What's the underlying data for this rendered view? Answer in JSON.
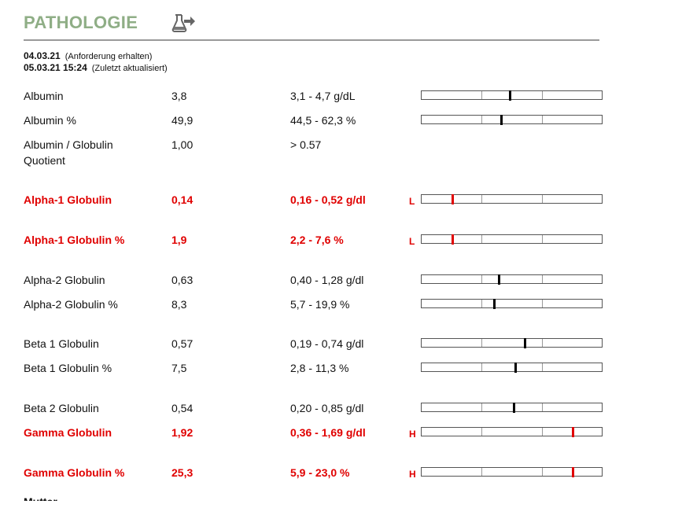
{
  "header": {
    "title": "PATHOLOGIE",
    "icon": "flask-arrow-icon"
  },
  "dates": [
    {
      "date": "04.03.21",
      "note": "(Anforderung erhalten)"
    },
    {
      "date": "05.03.21 15:24",
      "note": "(Zuletzt aktualisiert)"
    }
  ],
  "colors": {
    "title": "#8fae86",
    "abnormal": "#e00000",
    "rule": "#9a9a9a"
  },
  "results": [
    {
      "name": "Albumin",
      "value": "3,8",
      "range": "3,1 - 4,7 g/dL",
      "flag": "",
      "abnormal": false,
      "has_bar": true,
      "level": 0.49
    },
    {
      "name": "Albumin %",
      "value": "49,9",
      "range": "44,5 - 62,3 %",
      "flag": "",
      "abnormal": false,
      "has_bar": true,
      "level": 0.44
    },
    {
      "name": "Albumin / Globulin Quotient",
      "value": "1,00",
      "range": "> 0.57",
      "flag": "",
      "abnormal": false,
      "has_bar": false,
      "level": null
    },
    {
      "name": "Alpha-1 Globulin",
      "value": "0,14",
      "range": "0,16 - 0,52 g/dl",
      "flag": "L",
      "abnormal": true,
      "has_bar": true,
      "level": 0.17
    },
    {
      "name": "Alpha-1 Globulin %",
      "value": "1,9",
      "range": "2,2 - 7,6 %",
      "flag": "L",
      "abnormal": true,
      "has_bar": true,
      "level": 0.17
    },
    {
      "name": "Alpha-2 Globulin",
      "value": "0,63",
      "range": "0,40 - 1,28 g/dl",
      "flag": "",
      "abnormal": false,
      "has_bar": true,
      "level": 0.43
    },
    {
      "name": "Alpha-2 Globulin %",
      "value": "8,3",
      "range": "5,7 - 19,9 %",
      "flag": "",
      "abnormal": false,
      "has_bar": true,
      "level": 0.4
    },
    {
      "name": "Beta 1 Globulin",
      "value": "0,57",
      "range": "0,19 - 0,74 g/dl",
      "flag": "",
      "abnormal": false,
      "has_bar": true,
      "level": 0.57
    },
    {
      "name": "Beta 1 Globulin %",
      "value": "7,5",
      "range": "2,8 - 11,3 %",
      "flag": "",
      "abnormal": false,
      "has_bar": true,
      "level": 0.52
    },
    {
      "name": "Beta 2 Globulin",
      "value": "0,54",
      "range": "0,20 - 0,85 g/dl",
      "flag": "",
      "abnormal": false,
      "has_bar": true,
      "level": 0.51
    },
    {
      "name": "Gamma Globulin",
      "value": "1,92",
      "range": "0,36 - 1,69 g/dl",
      "flag": "H",
      "abnormal": true,
      "has_bar": true,
      "level": 0.84
    },
    {
      "name": "Gamma Globulin %",
      "value": "25,3",
      "range": "5,9 - 23,0 %",
      "flag": "H",
      "abnormal": true,
      "has_bar": true,
      "level": 0.84
    }
  ],
  "truncated_next": "Mutter"
}
